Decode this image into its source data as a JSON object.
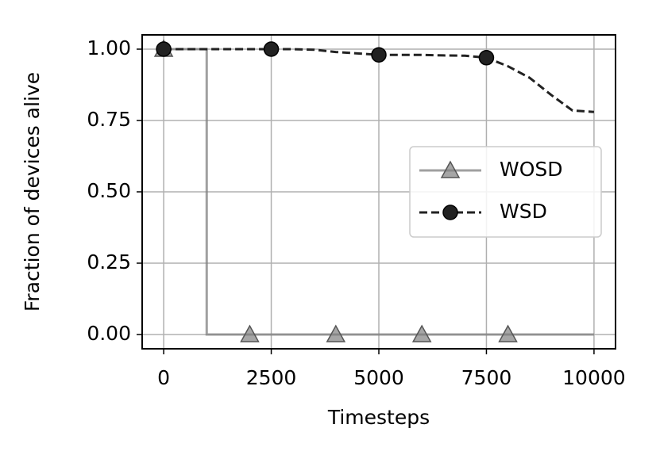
{
  "chart_data": {
    "type": "line",
    "x_label": "Timesteps",
    "y_label": "Fraction of devices alive",
    "series": [
      {
        "name": "WOSD",
        "color": "#808080",
        "marker": "triangle",
        "dash": false,
        "drawstyle": "steps-post",
        "markevery": 2000,
        "x": [
          0,
          1000,
          2000,
          3000,
          4000,
          5000,
          6000,
          7000,
          8000,
          9000,
          10000
        ],
        "values": [
          1,
          0,
          0,
          0,
          0,
          0,
          0,
          0,
          0,
          0,
          0
        ]
      },
      {
        "name": "WSD",
        "color": "#222222",
        "marker": "circle",
        "dash": true,
        "drawstyle": "default",
        "markevery": 2500,
        "x": [
          0,
          500,
          1000,
          1500,
          2000,
          2500,
          3000,
          3500,
          4000,
          4500,
          5000,
          5500,
          6000,
          6500,
          7000,
          7500,
          8000,
          8500,
          9000,
          9500,
          10000
        ],
        "values": [
          1,
          1,
          1,
          1,
          1,
          1,
          1,
          0.998,
          0.99,
          0.985,
          0.98,
          0.98,
          0.98,
          0.978,
          0.977,
          0.97,
          0.94,
          0.9,
          0.84,
          0.785,
          0.78
        ]
      }
    ],
    "xlim": [
      -500,
      10500
    ],
    "ylim": [
      -0.05,
      1.05
    ],
    "xticks": [
      0,
      2500,
      5000,
      7500,
      10000
    ],
    "yticks": [
      {
        "value": 0,
        "label": "0.00"
      },
      {
        "value": 0.25,
        "label": "0.25"
      },
      {
        "value": 0.5,
        "label": "0.50"
      },
      {
        "value": 0.75,
        "label": "0.75"
      },
      {
        "value": 1,
        "label": "1.00"
      }
    ],
    "grid": true,
    "legend": "right"
  }
}
